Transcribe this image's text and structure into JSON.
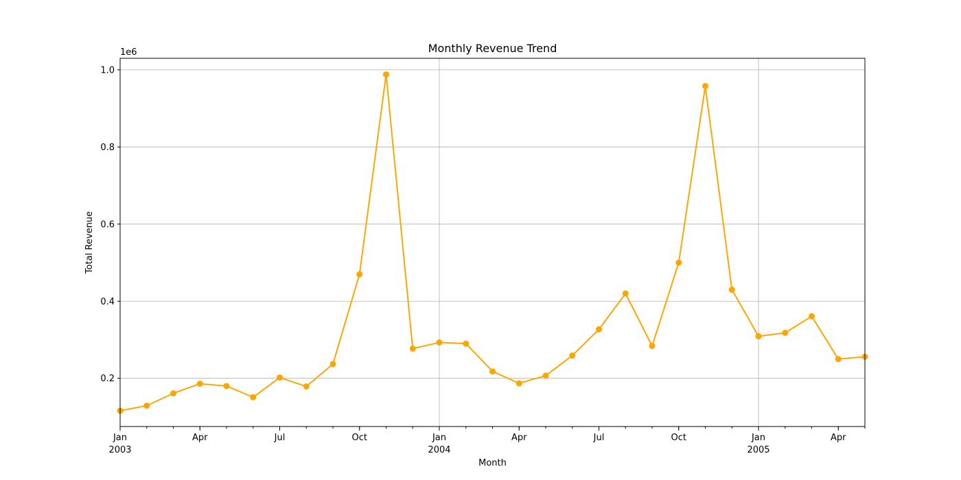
{
  "chart_data": {
    "type": "line",
    "title": "Monthly Revenue Trend",
    "xlabel": "Month",
    "ylabel": "Total Revenue",
    "y_offset_label": "1e6",
    "y_scale_multiplier": 1000000,
    "ylim": [
      75000,
      1030000
    ],
    "y_ticks": [
      0.2,
      0.4,
      0.6,
      0.8,
      1.0
    ],
    "y_tick_labels": [
      "0.2",
      "0.4",
      "0.6",
      "0.8",
      "1.0"
    ],
    "x": [
      "2003-01",
      "2003-02",
      "2003-03",
      "2003-04",
      "2003-05",
      "2003-06",
      "2003-07",
      "2003-08",
      "2003-09",
      "2003-10",
      "2003-11",
      "2003-12",
      "2004-01",
      "2004-02",
      "2004-03",
      "2004-04",
      "2004-05",
      "2004-06",
      "2004-07",
      "2004-08",
      "2004-09",
      "2004-10",
      "2004-11",
      "2004-12",
      "2005-01",
      "2005-02",
      "2005-03",
      "2005-04",
      "2005-05"
    ],
    "x_major_ticks": [
      {
        "x": "2003-01",
        "label": "Jan",
        "year": "2003",
        "grid": false
      },
      {
        "x": "2003-04",
        "label": "Apr",
        "year": "",
        "grid": false
      },
      {
        "x": "2003-07",
        "label": "Jul",
        "year": "",
        "grid": false
      },
      {
        "x": "2003-10",
        "label": "Oct",
        "year": "",
        "grid": false
      },
      {
        "x": "2004-01",
        "label": "Jan",
        "year": "2004",
        "grid": true
      },
      {
        "x": "2004-04",
        "label": "Apr",
        "year": "",
        "grid": false
      },
      {
        "x": "2004-07",
        "label": "Jul",
        "year": "",
        "grid": false
      },
      {
        "x": "2004-10",
        "label": "Oct",
        "year": "",
        "grid": false
      },
      {
        "x": "2005-01",
        "label": "Jan",
        "year": "2005",
        "grid": true
      },
      {
        "x": "2005-04",
        "label": "Apr",
        "year": "",
        "grid": false
      }
    ],
    "series": [
      {
        "color": "#FFA500",
        "marker": "circle",
        "values": [
          116000,
          129000,
          161000,
          186000,
          180000,
          151000,
          202000,
          179000,
          237000,
          470000,
          988000,
          277000,
          293000,
          290000,
          218000,
          187000,
          207000,
          259000,
          327000,
          420000,
          284000,
          500000,
          958000,
          430000,
          309000,
          318000,
          361000,
          250000,
          256000
        ]
      }
    ],
    "grid": true,
    "legend": "none"
  }
}
